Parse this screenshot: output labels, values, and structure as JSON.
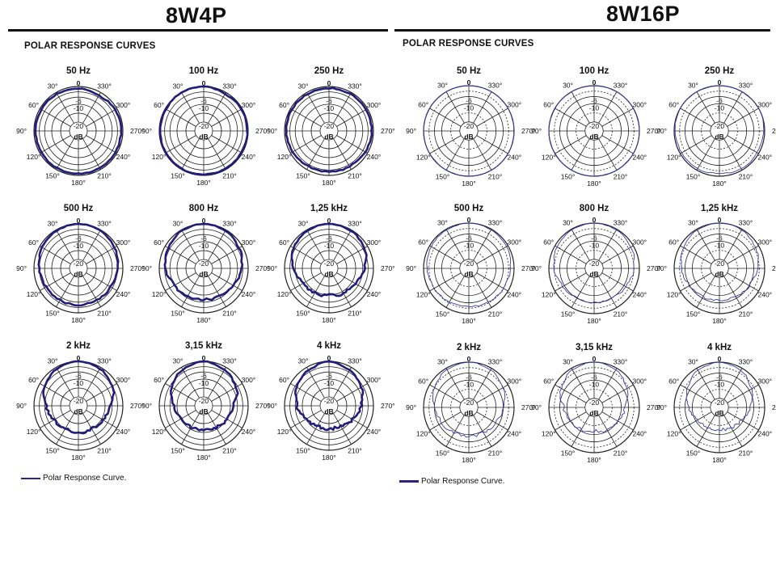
{
  "panels": [
    {
      "model": "8W4P",
      "section_title": "POLAR RESPONSE CURVES",
      "legend_label": "Polar Response Curve.",
      "curve_color": "#221d7a",
      "curve_width": "heavy"
    },
    {
      "model": "8W16P",
      "section_title": "POLAR RESPONSE CURVES",
      "legend_label": "Polar Response Curve.",
      "curve_color": "#3a38a8",
      "curve_width": "thin"
    }
  ],
  "chart_data": [
    {
      "type": "polar",
      "model": "8W4P",
      "angle_labels": [
        "0",
        "30°",
        "60°",
        "90°",
        "120°",
        "150°",
        "180°",
        "210°",
        "240°",
        "270°",
        "300°",
        "330°"
      ],
      "ring_labels": [
        "-6",
        "-10",
        "-20"
      ],
      "unit": "dB",
      "range_db": [
        -25,
        0
      ],
      "legend": "Polar Response Curve.",
      "series": [
        {
          "name": "50 Hz",
          "angles": [
            0,
            30,
            60,
            90,
            120,
            150,
            180,
            210,
            240,
            270,
            300,
            330
          ],
          "db": [
            -1,
            -1,
            -1,
            -1,
            -1,
            -1,
            -1,
            -1,
            -1,
            -1,
            -1,
            -2
          ]
        },
        {
          "name": "100 Hz",
          "angles": [
            0,
            30,
            60,
            90,
            120,
            150,
            180,
            210,
            240,
            270,
            300,
            330
          ],
          "db": [
            0,
            0,
            -0.5,
            -0.5,
            -0.5,
            -0.5,
            -0.5,
            -0.5,
            -0.5,
            -0.5,
            -0.5,
            -1
          ]
        },
        {
          "name": "250 Hz",
          "angles": [
            0,
            30,
            60,
            90,
            120,
            150,
            180,
            210,
            240,
            270,
            300,
            330
          ],
          "db": [
            -1,
            -1,
            -1,
            -1,
            -1.5,
            -2,
            -2,
            -2,
            -1.5,
            -1,
            -1,
            -1
          ]
        },
        {
          "name": "500 Hz",
          "angles": [
            0,
            30,
            60,
            90,
            120,
            150,
            180,
            210,
            240,
            270,
            300,
            330
          ],
          "db": [
            0,
            -0.5,
            -1.5,
            -3,
            -4,
            -4.5,
            -4.5,
            -4.5,
            -4,
            -3,
            -1.5,
            -0.5
          ]
        },
        {
          "name": "800 Hz",
          "angles": [
            0,
            30,
            60,
            90,
            120,
            150,
            180,
            210,
            240,
            270,
            300,
            330
          ],
          "db": [
            0,
            -0.5,
            -2,
            -3.5,
            -6,
            -7,
            -7.5,
            -7,
            -6,
            -3.5,
            -2,
            -0.5
          ]
        },
        {
          "name": "1,25 kHz",
          "angles": [
            0,
            30,
            60,
            90,
            120,
            150,
            180,
            210,
            240,
            270,
            300,
            330
          ],
          "db": [
            0,
            -0.5,
            -2,
            -5,
            -8,
            -9,
            -10,
            -9,
            -8,
            -5,
            -2,
            -0.5
          ]
        },
        {
          "name": "2 kHz",
          "angles": [
            0,
            30,
            60,
            90,
            120,
            150,
            180,
            210,
            240,
            270,
            300,
            330
          ],
          "db": [
            0,
            -1,
            -3,
            -7,
            -9,
            -10,
            -10,
            -10,
            -9,
            -7,
            -3,
            -1
          ]
        },
        {
          "name": "3,15 kHz",
          "angles": [
            0,
            30,
            60,
            90,
            120,
            150,
            180,
            210,
            240,
            270,
            300,
            330
          ],
          "db": [
            0,
            -1.5,
            -4,
            -8,
            -10,
            -11,
            -12,
            -11,
            -10,
            -8,
            -4,
            -1.5
          ]
        },
        {
          "name": "4 kHz",
          "angles": [
            0,
            30,
            60,
            90,
            120,
            150,
            180,
            210,
            240,
            270,
            300,
            330
          ],
          "db": [
            0,
            -2,
            -4,
            -7,
            -10,
            -12,
            -12,
            -12,
            -10,
            -7,
            -4,
            -2
          ]
        }
      ]
    },
    {
      "type": "polar",
      "model": "8W16P",
      "angle_labels": [
        "0",
        "30°",
        "60°",
        "90°",
        "120°",
        "150°",
        "180°",
        "210°",
        "240°",
        "270°",
        "300°",
        "330°"
      ],
      "ring_labels": [
        "-6",
        "-10",
        "-20"
      ],
      "unit": "dB",
      "range_db": [
        -25,
        0
      ],
      "legend": "Polar Response Curve.",
      "series": [
        {
          "name": "50 Hz",
          "angles": [
            0,
            30,
            60,
            90,
            120,
            150,
            180,
            210,
            240,
            270,
            300,
            330
          ],
          "db": [
            0,
            0,
            0,
            0,
            0,
            0,
            0,
            0,
            0,
            0,
            0,
            0
          ]
        },
        {
          "name": "100 Hz",
          "angles": [
            0,
            30,
            60,
            90,
            120,
            150,
            180,
            210,
            240,
            270,
            300,
            330
          ],
          "db": [
            0,
            0,
            0,
            0,
            0,
            0,
            0,
            0,
            0,
            0,
            0,
            0
          ]
        },
        {
          "name": "250 Hz",
          "angles": [
            0,
            30,
            60,
            90,
            120,
            150,
            180,
            210,
            240,
            270,
            300,
            330
          ],
          "db": [
            0,
            0,
            0,
            -0.5,
            -1,
            -1,
            -1.5,
            -1,
            -1,
            -0.5,
            0,
            0
          ]
        },
        {
          "name": "500 Hz",
          "angles": [
            0,
            30,
            60,
            90,
            120,
            150,
            180,
            210,
            240,
            270,
            300,
            330
          ],
          "db": [
            0,
            -0.5,
            -1,
            -2,
            -3,
            -3.5,
            -4,
            -3.5,
            -3,
            -2,
            -1,
            -0.5
          ]
        },
        {
          "name": "800 Hz",
          "angles": [
            0,
            30,
            60,
            90,
            120,
            150,
            180,
            210,
            240,
            270,
            300,
            330
          ],
          "db": [
            0,
            -0.5,
            -1.5,
            -3,
            -5,
            -6,
            -6,
            -6,
            -5,
            -3,
            -1.5,
            -0.5
          ]
        },
        {
          "name": "1,25 kHz",
          "angles": [
            0,
            30,
            60,
            90,
            120,
            150,
            180,
            210,
            240,
            270,
            300,
            330
          ],
          "db": [
            0,
            -0.5,
            -2,
            -4,
            -6,
            -7,
            -7.5,
            -7,
            -6,
            -4,
            -2,
            -0.5
          ]
        },
        {
          "name": "2 kHz",
          "angles": [
            0,
            30,
            60,
            90,
            120,
            150,
            180,
            210,
            240,
            270,
            300,
            330
          ],
          "db": [
            0,
            -1,
            -3,
            -6,
            -8,
            -9,
            -9,
            -9,
            -8,
            -6,
            -3,
            -1
          ]
        },
        {
          "name": "3,15 kHz",
          "angles": [
            0,
            30,
            60,
            90,
            120,
            150,
            180,
            210,
            240,
            270,
            300,
            330
          ],
          "db": [
            0,
            -1,
            -4,
            -8,
            -10,
            -11,
            -12,
            -11,
            -10,
            -8,
            -4,
            -1
          ]
        },
        {
          "name": "4 kHz",
          "angles": [
            0,
            30,
            60,
            90,
            120,
            150,
            180,
            210,
            240,
            270,
            300,
            330
          ],
          "db": [
            0,
            -1.5,
            -4.5,
            -8,
            -11,
            -12,
            -13,
            -12,
            -11,
            -8,
            -4.5,
            -1.5
          ]
        }
      ]
    }
  ]
}
